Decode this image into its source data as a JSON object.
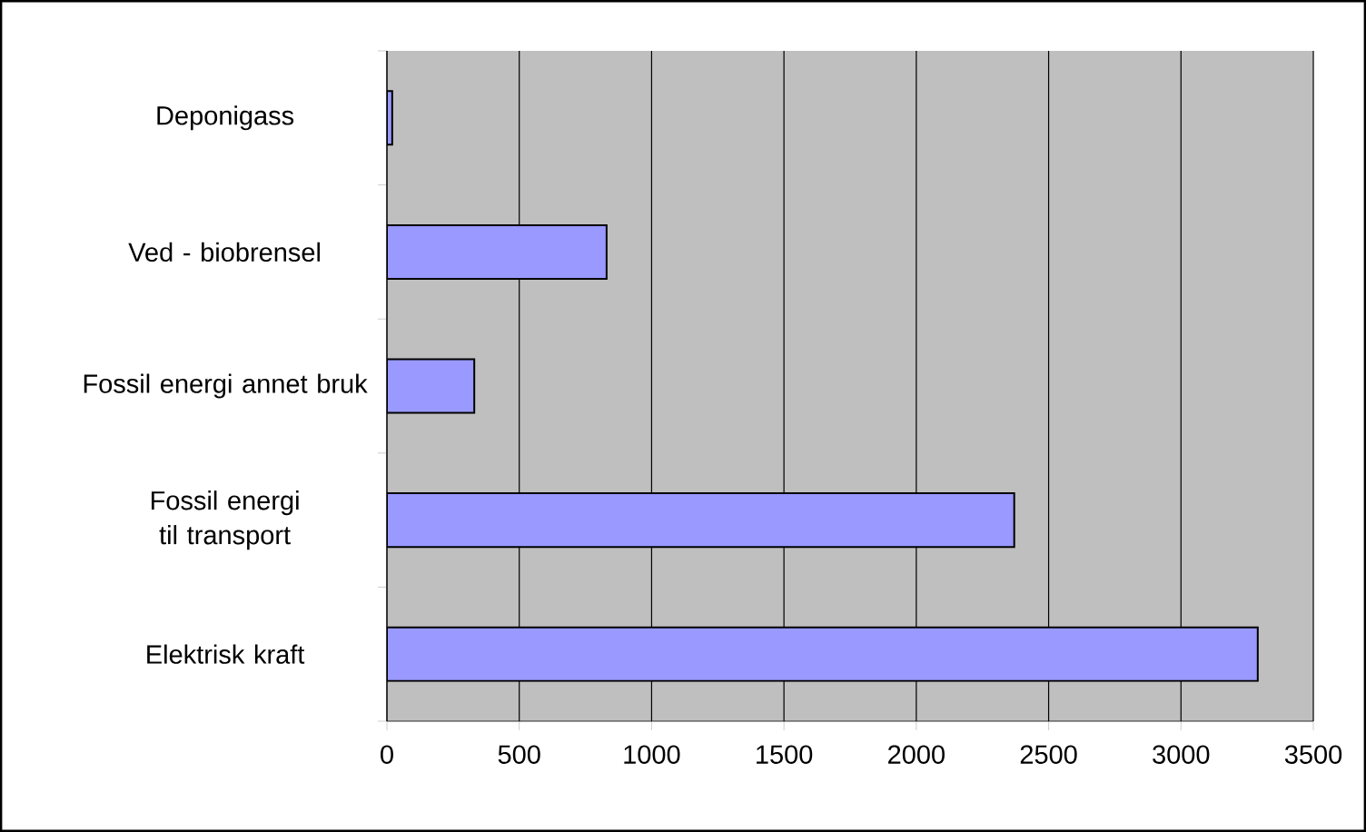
{
  "chart_data": {
    "type": "bar",
    "orientation": "horizontal",
    "categories": [
      "Deponigass",
      "Ved - biobrensel",
      "Fossil energi annet bruk",
      "Fossil energi til transport",
      "Elektrisk kraft"
    ],
    "values": [
      20,
      830,
      330,
      2370,
      3290
    ],
    "color": "#9999ff",
    "xlim": [
      0,
      3500
    ],
    "xticks": [
      0,
      500,
      1000,
      1500,
      2000,
      2500,
      3000,
      3500
    ],
    "grid": "x"
  }
}
